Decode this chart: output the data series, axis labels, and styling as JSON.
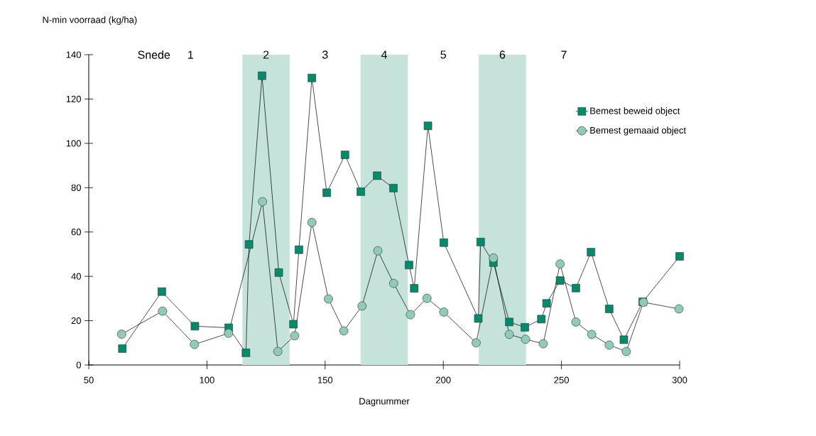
{
  "chart_data": {
    "type": "line",
    "xlabel": "Dagnummer",
    "ylabel": "N-min voorraad (kg/ha)",
    "xlim": [
      50,
      300
    ],
    "ylim": [
      0,
      140
    ],
    "xticks": [
      50,
      100,
      150,
      200,
      250,
      300
    ],
    "yticks": [
      0,
      20,
      40,
      60,
      80,
      100,
      120,
      140
    ],
    "legend": "right",
    "line_style": "solid",
    "series": [
      {
        "name": "Bemest beweid object",
        "color": "#008c6a",
        "marker": "square",
        "x": [
          64.2,
          80.9,
          94.9,
          109.2,
          116.5,
          117.8,
          123.3,
          130.4,
          136.6,
          138.9,
          144.4,
          150.7,
          158.4,
          165.1,
          172.0,
          178.9,
          185.5,
          187.7,
          193.5,
          200.2,
          214.8,
          215.8,
          221.2,
          227.9,
          234.5,
          241.5,
          243.7,
          249.4,
          256.1,
          262.5,
          270.2,
          276.4,
          284.4,
          300
        ],
        "values": [
          7.4,
          33.1,
          17.5,
          16.8,
          5.5,
          54.4,
          130.5,
          41.7,
          18.4,
          52.0,
          129.5,
          77.7,
          94.8,
          78.2,
          85.4,
          79.8,
          45.1,
          34.6,
          107.9,
          55.2,
          21.0,
          55.5,
          46.2,
          19.4,
          17.0,
          20.7,
          27.8,
          38.1,
          34.7,
          50.9,
          25.3,
          11.4,
          28.5,
          49.0
        ]
      },
      {
        "name": "Bemest gemaaid object",
        "color": "#8fcbb8",
        "marker": "circle",
        "x": [
          63.9,
          81.2,
          94.7,
          109.1,
          123.5,
          130.0,
          137.1,
          144.4,
          151.4,
          157.9,
          165.6,
          172.3,
          179.0,
          186.1,
          193.1,
          200.2,
          213.9,
          221.2,
          227.9,
          234.8,
          242.3,
          249.4,
          256.1,
          262.8,
          270.2,
          277.4,
          284.7,
          299.7
        ],
        "values": [
          13.9,
          24.3,
          9.3,
          14.3,
          73.7,
          6.1,
          13.2,
          64.3,
          29.8,
          15.4,
          26.6,
          51.5,
          36.8,
          22.7,
          30.1,
          23.9,
          10.0,
          48.3,
          13.8,
          11.6,
          9.6,
          45.6,
          19.4,
          13.8,
          9.0,
          6.1,
          28.3,
          25.3
        ]
      }
    ],
    "bands": [
      {
        "axis": "x",
        "from": 115,
        "to": 135,
        "label": "2",
        "color": "#c5e2db"
      },
      {
        "axis": "x",
        "from": 165,
        "to": 185,
        "label": "4",
        "color": "#c5e2db"
      },
      {
        "axis": "x",
        "from": 215,
        "to": 235,
        "label": "6",
        "color": "#c5e2db"
      }
    ],
    "annotations": [
      "Snede",
      "1",
      "3",
      "5",
      "7"
    ]
  }
}
